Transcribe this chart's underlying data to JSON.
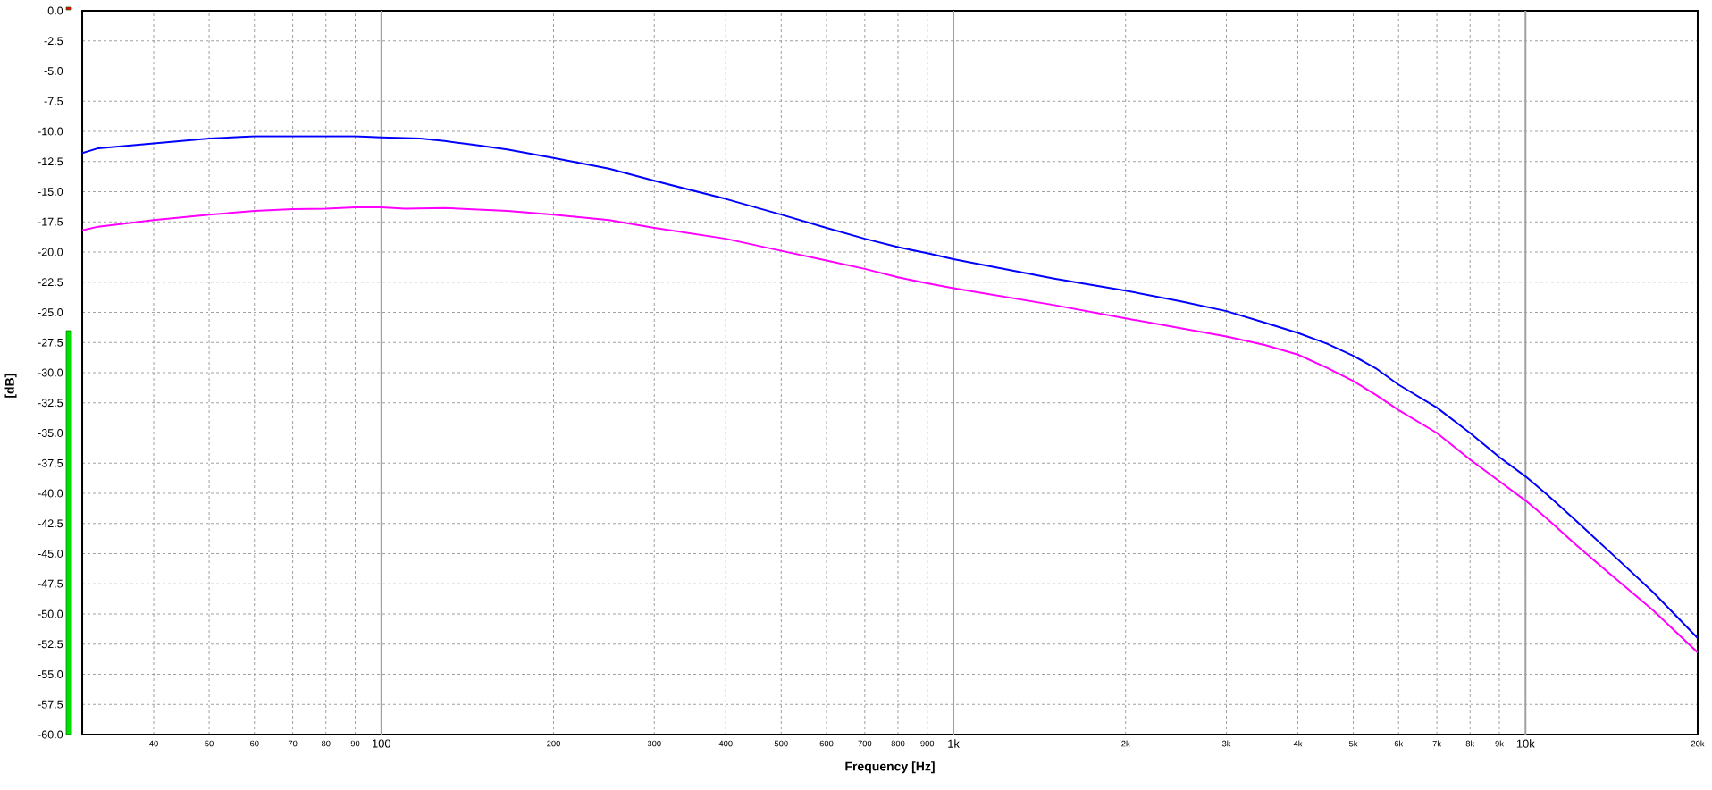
{
  "chart_data": {
    "type": "line",
    "xlabel": "Frequency [Hz]",
    "ylabel": "[dB]",
    "log": "x",
    "grid": true,
    "xlim": [
      30,
      20000
    ],
    "ylim": [
      -60,
      0
    ],
    "xticks": [
      40,
      50,
      60,
      70,
      80,
      90,
      100,
      200,
      300,
      400,
      500,
      600,
      700,
      800,
      900,
      {
        "value": 1000,
        "label": "1k"
      },
      {
        "value": 2000,
        "label": "2k"
      },
      {
        "value": 3000,
        "label": "3k"
      },
      {
        "value": 4000,
        "label": "4k"
      },
      {
        "value": 5000,
        "label": "5k"
      },
      {
        "value": 6000,
        "label": "6k"
      },
      {
        "value": 7000,
        "label": "7k"
      },
      {
        "value": 8000,
        "label": "8k"
      },
      {
        "value": 9000,
        "label": "9k"
      },
      {
        "value": 10000,
        "label": "10k"
      },
      {
        "value": 20000,
        "label": "20k"
      }
    ],
    "yticks": [
      {
        "value": -60,
        "label": "-60.0"
      },
      -57.5,
      {
        "value": -55,
        "label": "-55.0"
      },
      -52.5,
      {
        "value": -50,
        "label": "-50.0"
      },
      -47.5,
      {
        "value": -45,
        "label": "-45.0"
      },
      -42.5,
      {
        "value": -40,
        "label": "-40.0"
      },
      -37.5,
      {
        "value": -35,
        "label": "-35.0"
      },
      -32.5,
      {
        "value": -30,
        "label": "-30.0"
      },
      -27.5,
      {
        "value": -25,
        "label": "-25.0"
      },
      -22.5,
      {
        "value": -20,
        "label": "-20.0"
      },
      -17.5,
      {
        "value": -15,
        "label": "-15.0"
      },
      -12.5,
      {
        "value": -10,
        "label": "-10.0"
      },
      -7.5,
      {
        "value": -5,
        "label": "-5.0"
      },
      -2.5,
      {
        "value": 0,
        "label": "0.0"
      }
    ],
    "series": [
      {
        "color": "#0000ff",
        "x": [
          30,
          32,
          40,
          50,
          60,
          70,
          80,
          90,
          100,
          117,
          129,
          144,
          166,
          200,
          250,
          300,
          400,
          500,
          600,
          700,
          800,
          900,
          1000,
          1500,
          2000,
          2500,
          3000,
          3500,
          4000,
          4500,
          5000,
          5500,
          6000,
          7000,
          8000,
          9000,
          10000,
          10900,
          12270,
          14070,
          16720,
          20000
        ],
        "values": [
          -11.8,
          -11.4,
          -11.0,
          -10.6,
          -10.4,
          -10.4,
          -10.4,
          -10.4,
          -10.5,
          -10.6,
          -10.8,
          -11.1,
          -11.5,
          -12.2,
          -13.1,
          -14.1,
          -15.6,
          -16.9,
          -18.0,
          -18.9,
          -19.6,
          -20.1,
          -20.6,
          -22.2,
          -23.2,
          -24.1,
          -24.9,
          -25.85,
          -26.7,
          -27.6,
          -28.6,
          -29.7,
          -31.0,
          -32.9,
          -35.0,
          -37.0,
          -38.6,
          -40.1,
          -42.3,
          -44.9,
          -48.2,
          -52.0
        ]
      },
      {
        "color": "#ff00ff",
        "x": [
          30,
          32,
          40,
          50,
          60,
          70,
          80,
          90,
          100,
          110,
          129,
          166,
          200,
          250,
          300,
          400,
          500,
          600,
          700,
          800,
          900,
          1000,
          1500,
          2000,
          3000,
          3500,
          4000,
          4500,
          5000,
          5500,
          6000,
          7000,
          8000,
          9000,
          10000,
          10900,
          12270,
          14070,
          16720,
          20000
        ],
        "values": [
          -18.2,
          -17.9,
          -17.35,
          -16.9,
          -16.6,
          -16.45,
          -16.4,
          -16.3,
          -16.3,
          -16.4,
          -16.35,
          -16.6,
          -16.9,
          -17.35,
          -18.0,
          -18.9,
          -19.9,
          -20.7,
          -21.4,
          -22.1,
          -22.6,
          -23.0,
          -24.4,
          -25.5,
          -27.0,
          -27.7,
          -28.5,
          -29.6,
          -30.7,
          -31.9,
          -33.1,
          -35.0,
          -37.2,
          -39.0,
          -40.6,
          -42.1,
          -44.3,
          -46.7,
          -49.7,
          -53.2
        ]
      }
    ]
  }
}
